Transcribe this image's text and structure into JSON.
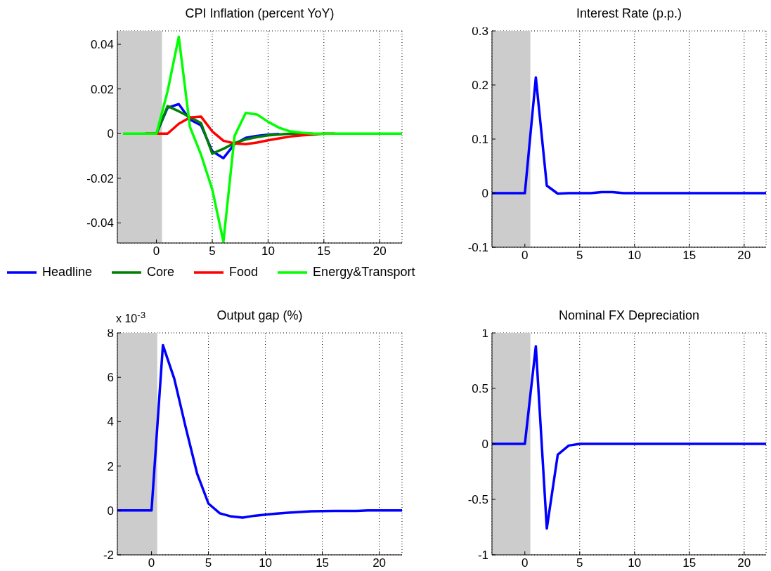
{
  "chart_data": [
    {
      "type": "line",
      "title": "CPI Inflation (percent YoY)",
      "x": [
        -3,
        -2,
        -1,
        0,
        1,
        2,
        3,
        4,
        5,
        6,
        7,
        8,
        9,
        10,
        11,
        12,
        13,
        14,
        15,
        16,
        17,
        18,
        19,
        20,
        21,
        22
      ],
      "series": [
        {
          "name": "Headline",
          "color": "#0000ff",
          "values": [
            null,
            null,
            null,
            0,
            0.0116,
            0.0132,
            0.0063,
            0.0037,
            -0.0079,
            -0.011,
            -0.0047,
            -0.0019,
            -0.001,
            -0.0005,
            -0.0002,
            null,
            null,
            null,
            null,
            null,
            null,
            null,
            null,
            null,
            null,
            null
          ]
        },
        {
          "name": "Core",
          "color": "#007f00",
          "values": [
            null,
            null,
            0,
            0,
            0.0123,
            0.01,
            0.0074,
            0.0047,
            -0.0089,
            -0.0068,
            -0.0042,
            -0.0026,
            -0.0016,
            -0.0008,
            -0.0004,
            0,
            0,
            0,
            null,
            null,
            null,
            null,
            null,
            null,
            null,
            null
          ]
        },
        {
          "name": "Food",
          "color": "#ff0000",
          "values": [
            null,
            null,
            0,
            0,
            0,
            0.0044,
            0.0072,
            0.0076,
            0.001,
            -0.0032,
            -0.0044,
            -0.0047,
            -0.004,
            -0.003,
            -0.0021,
            -0.0013,
            -0.0008,
            -0.0005,
            0,
            0,
            null,
            null,
            null,
            null,
            null,
            null
          ]
        },
        {
          "name": "Energy&Transport",
          "color": "#00ff00",
          "values": [
            0,
            0,
            0,
            0,
            0.019,
            0.0434,
            0.003,
            -0.0095,
            -0.025,
            -0.0484,
            -0.001,
            0.0093,
            0.0086,
            0.0053,
            0.0026,
            0.001,
            0.0004,
            0,
            0,
            0,
            0,
            0,
            0,
            0,
            0,
            0
          ]
        }
      ],
      "xlim": [
        -3.5,
        22
      ],
      "xticks": [
        0,
        5,
        10,
        15,
        20
      ],
      "ylim": [
        -0.049,
        0.046
      ],
      "yticks": [
        -0.04,
        -0.02,
        0,
        0.02,
        0.04
      ],
      "grid": true,
      "legend": "bottom",
      "bands": [
        {
          "axis": "x",
          "from": -3.5,
          "to": 0.5,
          "color": "#cccccc"
        }
      ]
    },
    {
      "type": "line",
      "title": "Interest Rate (p.p.)",
      "x": [
        -3,
        -2,
        -1,
        0,
        1,
        2,
        3,
        4,
        5,
        6,
        7,
        8,
        9,
        10,
        11,
        12,
        13,
        14,
        15,
        16,
        17,
        18,
        19,
        20,
        21,
        22
      ],
      "series": [
        {
          "color": "#0000ff",
          "values": [
            0,
            0,
            0,
            0,
            0.214,
            0.014,
            -0.001,
            0,
            0,
            0,
            0.002,
            0.002,
            0,
            0,
            0,
            0,
            0,
            0,
            0,
            0,
            0,
            0,
            0,
            0,
            0,
            0
          ]
        }
      ],
      "xlim": [
        -3,
        22
      ],
      "xticks": [
        0,
        5,
        10,
        15,
        20
      ],
      "ylim": [
        -0.1,
        0.3
      ],
      "yticks": [
        -0.1,
        0,
        0.1,
        0.2,
        0.3
      ],
      "grid": true,
      "bands": [
        {
          "axis": "x",
          "from": -3,
          "to": 0.5,
          "color": "#cccccc"
        }
      ]
    },
    {
      "type": "line",
      "title": "Output gap (%)",
      "annotations": [
        "x 10$^{-3}$"
      ],
      "x": [
        -3,
        -2,
        -1,
        0,
        1,
        2,
        3,
        4,
        5,
        6,
        7,
        8,
        9,
        10,
        11,
        12,
        13,
        14,
        15,
        16,
        17,
        18,
        19,
        20,
        21,
        22
      ],
      "series": [
        {
          "color": "#0000ff",
          "values": [
            0,
            0,
            0,
            0,
            7.45,
            5.93,
            3.75,
            1.67,
            0.31,
            -0.13,
            -0.27,
            -0.32,
            -0.24,
            -0.19,
            -0.14,
            -0.1,
            -0.07,
            -0.04,
            -0.03,
            -0.02,
            -0.02,
            -0.02,
            0,
            0,
            0,
            0
          ]
        }
      ],
      "xlim": [
        -3,
        22
      ],
      "xticks": [
        0,
        5,
        10,
        15,
        20
      ],
      "ylim": [
        -2,
        8
      ],
      "yticks": [
        -2,
        0,
        2,
        4,
        6,
        8
      ],
      "grid": true,
      "bands": [
        {
          "axis": "x",
          "from": -3,
          "to": 0.5,
          "color": "#cccccc"
        }
      ]
    },
    {
      "type": "line",
      "title": "Nominal FX Depreciation",
      "x": [
        -3,
        -2,
        -1,
        0,
        1,
        2,
        3,
        4,
        5,
        6,
        7,
        8,
        9,
        10,
        11,
        12,
        13,
        14,
        15,
        16,
        17,
        18,
        19,
        20,
        21,
        22
      ],
      "series": [
        {
          "color": "#0000ff",
          "values": [
            0,
            0,
            0,
            0,
            0.88,
            -0.762,
            -0.097,
            -0.015,
            0,
            0,
            0,
            0,
            0,
            0,
            0,
            0,
            0,
            0,
            0,
            0,
            0,
            0,
            0,
            0,
            0,
            0
          ]
        }
      ],
      "xlim": [
        -3,
        22
      ],
      "xticks": [
        0,
        5,
        10,
        15,
        20
      ],
      "ylim": [
        -1,
        1
      ],
      "yticks": [
        -1,
        -0.5,
        0,
        0.5,
        1
      ],
      "grid": true,
      "bands": [
        {
          "axis": "x",
          "from": -3,
          "to": 0.5,
          "color": "#cccccc"
        }
      ]
    }
  ]
}
